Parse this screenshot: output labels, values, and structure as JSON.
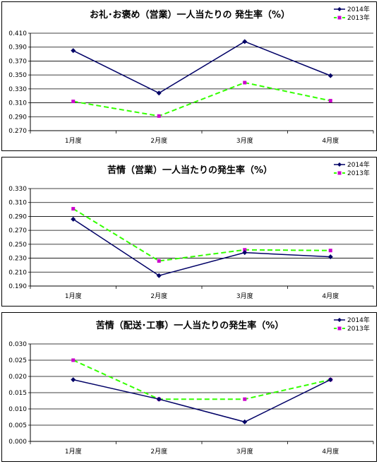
{
  "chart_data": [
    {
      "type": "line",
      "title": "お礼･お褒め（営業）一人当たりの 発生率（%）",
      "categories": [
        "1月度",
        "2月度",
        "3月度",
        "4月度"
      ],
      "y_ticks": [
        "0.270",
        "0.290",
        "0.310",
        "0.330",
        "0.350",
        "0.370",
        "0.390",
        "0.410"
      ],
      "ylim": [
        0.27,
        0.41
      ],
      "grid": true,
      "legend_position": "top-right",
      "series": [
        {
          "name": "2014年",
          "color": "#000066",
          "marker": "diamond",
          "dash": "solid",
          "values": [
            0.385,
            0.324,
            0.398,
            0.349
          ]
        },
        {
          "name": "2013年",
          "color": "#33ff00",
          "marker_color": "#cc00cc",
          "marker": "square",
          "dash": "dashed",
          "values": [
            0.312,
            0.291,
            0.339,
            0.313
          ]
        }
      ]
    },
    {
      "type": "line",
      "title": "苦情（営業）一人当たりの発生率（%）",
      "categories": [
        "1月度",
        "2月度",
        "3月度",
        "4月度"
      ],
      "y_ticks": [
        "0.190",
        "0.210",
        "0.230",
        "0.250",
        "0.270",
        "0.290",
        "0.310",
        "0.330"
      ],
      "ylim": [
        0.19,
        0.33
      ],
      "grid": true,
      "legend_position": "top-right",
      "series": [
        {
          "name": "2014年",
          "color": "#000066",
          "marker": "diamond",
          "dash": "solid",
          "values": [
            0.286,
            0.205,
            0.238,
            0.232
          ]
        },
        {
          "name": "2013年",
          "color": "#33ff00",
          "marker_color": "#cc00cc",
          "marker": "square",
          "dash": "dashed",
          "values": [
            0.301,
            0.226,
            0.242,
            0.241
          ]
        }
      ]
    },
    {
      "type": "line",
      "title": "苦情（配送･工事）一人当たりの発生率（%）",
      "categories": [
        "1月度",
        "2月度",
        "3月度",
        "4月度"
      ],
      "y_ticks": [
        "0.000",
        "0.005",
        "0.010",
        "0.015",
        "0.020",
        "0.025",
        "0.030"
      ],
      "ylim": [
        0,
        0.03
      ],
      "grid": true,
      "legend_position": "top-right",
      "series": [
        {
          "name": "2014年",
          "color": "#000066",
          "marker": "diamond",
          "dash": "solid",
          "values": [
            0.019,
            0.013,
            0.006,
            0.019
          ]
        },
        {
          "name": "2013年",
          "color": "#33ff00",
          "marker_color": "#cc00cc",
          "marker": "square",
          "dash": "dashed",
          "values": [
            0.025,
            0.013,
            0.013,
            0.019
          ]
        }
      ]
    }
  ]
}
